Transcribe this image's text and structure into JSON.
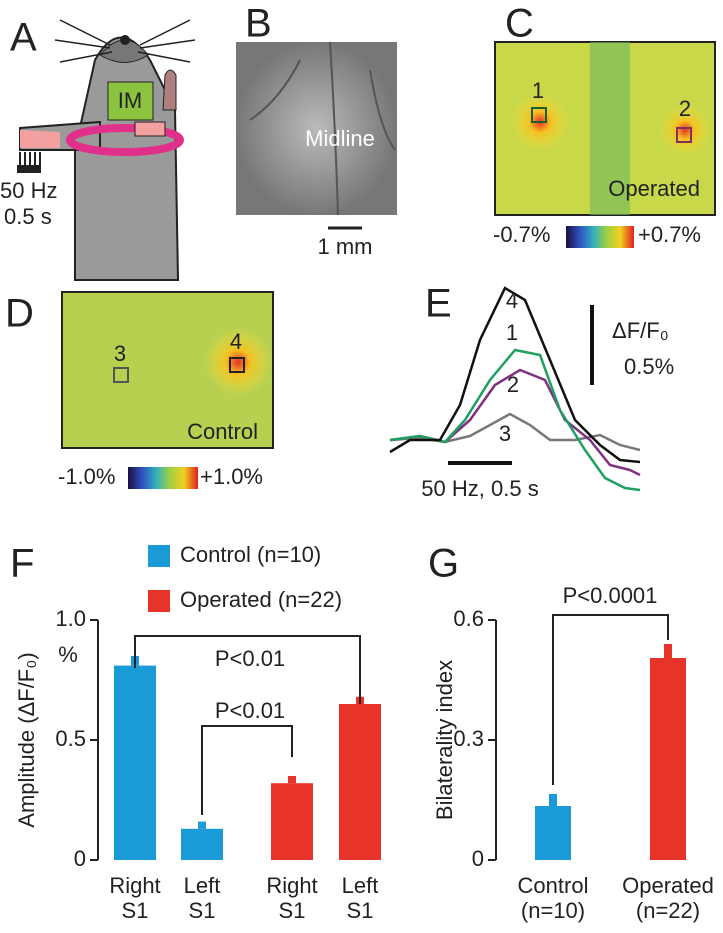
{
  "panels": {
    "A": {
      "label": "A",
      "im": "IM",
      "stim_freq": "50 Hz",
      "stim_dur": "0.5 s"
    },
    "B": {
      "label": "B",
      "midline": "Midline",
      "scale": "1 mm"
    },
    "C": {
      "label": "C",
      "roi1": "1",
      "roi2": "2",
      "condition": "Operated",
      "cmin": "-0.7%",
      "cmax": "+0.7%"
    },
    "D": {
      "label": "D",
      "roi3": "3",
      "roi4": "4",
      "condition": "Control",
      "cmin": "-1.0%",
      "cmax": "+1.0%"
    },
    "E": {
      "label": "E",
      "trace_labels": [
        "4",
        "1",
        "2",
        "3"
      ],
      "scale_unit": "ΔF/F₀",
      "scale_value": "0.5%",
      "stim": "50 Hz, 0.5 s"
    }
  },
  "chart_data": [
    {
      "type": "bar",
      "panel_label": "F",
      "ylabel": "Amplitude (ΔF/F₀)",
      "y_unit": "%",
      "categories": [
        [
          "Right",
          "S1"
        ],
        [
          "Left",
          "S1"
        ],
        [
          "Right",
          "S1"
        ],
        [
          "Left",
          "S1"
        ]
      ],
      "series": [
        {
          "name": "Control (n=10)",
          "color": "#1a9ad6",
          "values": [
            0.81,
            0.13,
            null,
            null
          ],
          "errors": [
            0.04,
            0.03,
            null,
            null
          ]
        },
        {
          "name": "Operated (n=22)",
          "color": "#e8332a",
          "values": [
            null,
            null,
            0.32,
            0.65
          ],
          "errors": [
            null,
            null,
            0.03,
            0.03
          ]
        }
      ],
      "ylim": [
        0,
        1
      ],
      "yticks": [
        0,
        0.5,
        {
          "value": 1,
          "label": "1.0"
        }
      ],
      "annotations": [
        "P<0.01",
        "P<0.01"
      ]
    },
    {
      "type": "bar",
      "panel_label": "G",
      "ylabel": "Bilaterality index",
      "categories": [
        [
          "Control",
          "(n=10)"
        ],
        [
          "Operated",
          "(n=22)"
        ]
      ],
      "values": [
        0.135,
        0.505
      ],
      "errors": [
        0.03,
        0.035
      ],
      "colors": [
        "#1a9ad6",
        "#e8332a"
      ],
      "ylim": [
        0,
        0.6
      ],
      "yticks": [
        0,
        0.3,
        0.6
      ],
      "annotations": [
        "P<0.0001"
      ]
    }
  ]
}
